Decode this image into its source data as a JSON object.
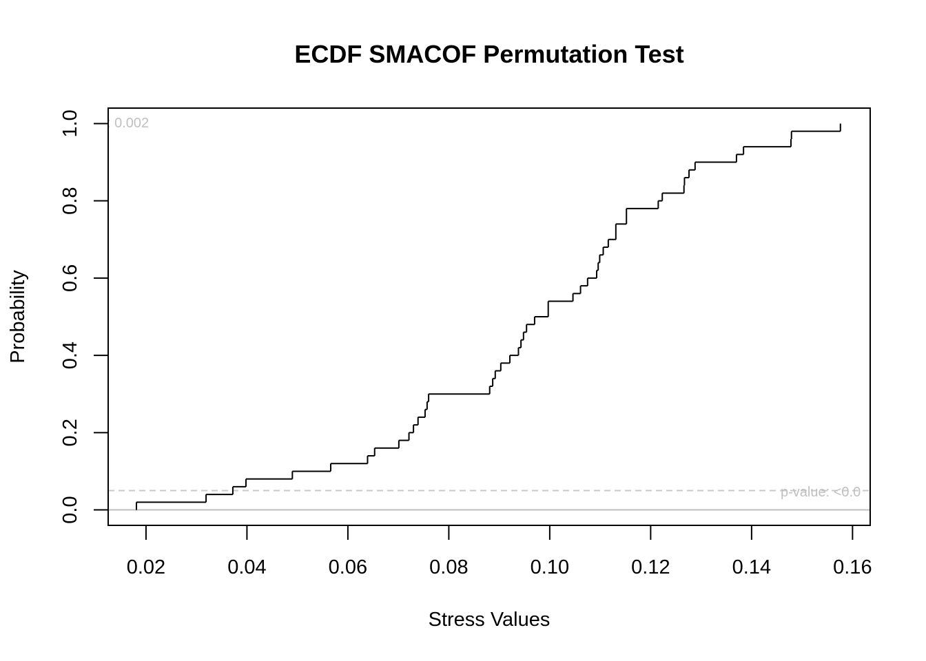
{
  "chart_data": {
    "type": "line",
    "title": "ECDF SMACOF Permutation Test",
    "xlabel": "Stress Values",
    "ylabel": "Probability",
    "xlim": [
      0.0125,
      0.1635
    ],
    "ylim": [
      -0.04,
      1.04
    ],
    "x_ticks": [
      "0.02",
      "0.04",
      "0.06",
      "0.08",
      "0.10",
      "0.12",
      "0.14",
      "0.16"
    ],
    "y_ticks": [
      "0.0",
      "0.2",
      "0.4",
      "0.6",
      "0.8",
      "1.0"
    ],
    "x_tick_values": [
      0.02,
      0.04,
      0.06,
      0.08,
      0.1,
      0.12,
      0.14,
      0.16
    ],
    "y_tick_values": [
      0.0,
      0.2,
      0.4,
      0.6,
      0.8,
      1.0
    ],
    "grid": false,
    "series": [
      {
        "step": "post",
        "x": [
          0.0181,
          0.0319,
          0.0372,
          0.0398,
          0.049,
          0.0566,
          0.0639,
          0.0653,
          0.0701,
          0.0721,
          0.073,
          0.0739,
          0.0753,
          0.0757,
          0.076,
          0.0881,
          0.0887,
          0.0892,
          0.0903,
          0.0921,
          0.0938,
          0.0943,
          0.0948,
          0.0954,
          0.097,
          0.0997,
          0.1046,
          0.1061,
          0.1075,
          0.1093,
          0.1096,
          0.1099,
          0.1106,
          0.1116,
          0.1131,
          0.1152,
          0.1215,
          0.1223,
          0.1266,
          0.1267,
          0.1276,
          0.1288,
          0.137,
          0.1384,
          0.1478,
          0.1479,
          0.1576
        ],
        "y": [
          0.02,
          0.04,
          0.06,
          0.08,
          0.1,
          0.12,
          0.14,
          0.16,
          0.18,
          0.2,
          0.22,
          0.24,
          0.26,
          0.28,
          0.3,
          0.32,
          0.34,
          0.36,
          0.38,
          0.4,
          0.42,
          0.44,
          0.46,
          0.48,
          0.5,
          0.54,
          0.56,
          0.58,
          0.6,
          0.62,
          0.64,
          0.66,
          0.68,
          0.7,
          0.74,
          0.78,
          0.8,
          0.82,
          0.84,
          0.86,
          0.88,
          0.9,
          0.92,
          0.94,
          0.96,
          0.98,
          1.0
        ]
      }
    ],
    "reference_lines": [
      {
        "y": 0.05,
        "style": "dashed",
        "color": "#c8c8c8",
        "label": "p-value: <0.0"
      },
      {
        "y": 0.0,
        "style": "solid",
        "color": "#bebebe"
      }
    ],
    "annotation_top_left": ": 0.002",
    "colors": {
      "step_line": "#000000",
      "note_text": "#c0c0c0"
    }
  }
}
